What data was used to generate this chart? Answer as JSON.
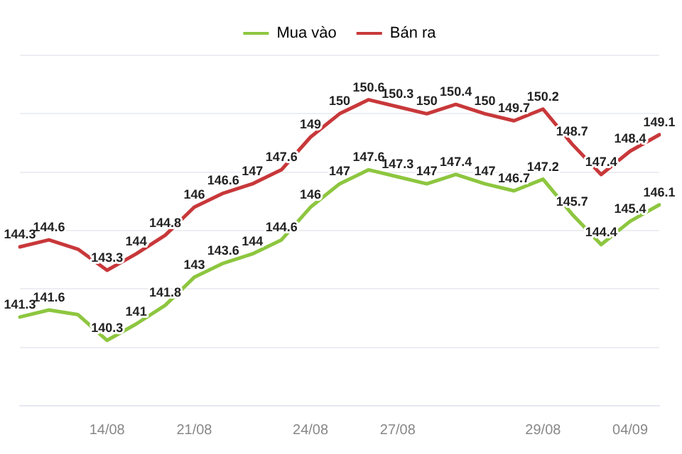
{
  "chart_data": {
    "type": "line",
    "categories": [
      null,
      null,
      null,
      "14/08",
      null,
      null,
      "21/08",
      null,
      null,
      null,
      "24/08",
      null,
      null,
      "27/08",
      null,
      null,
      null,
      null,
      "29/08",
      null,
      null,
      "04/09",
      null
    ],
    "series": [
      {
        "name": "Mua vào",
        "color": "#8dc63f",
        "values": [
          141.3,
          141.6,
          141.4,
          140.3,
          141,
          141.8,
          143,
          143.6,
          144,
          144.6,
          146,
          147,
          147.6,
          147.3,
          147,
          147.4,
          147,
          146.7,
          147.2,
          145.7,
          144.4,
          145.4,
          146.1
        ],
        "value_labels": [
          "141.3",
          "141.6",
          null,
          "140.3",
          "141",
          "141.8",
          "143",
          "143.6",
          "144",
          "144.6",
          "146",
          "147",
          "147.6",
          "147.3",
          "147",
          "147.4",
          "147",
          "146.7",
          "147.2",
          "145.7",
          "144.4",
          "145.4",
          "146.1"
        ]
      },
      {
        "name": "Bán ra",
        "color": "#c8383a",
        "values": [
          144.3,
          144.6,
          144.2,
          143.3,
          144,
          144.8,
          146,
          146.6,
          147,
          147.6,
          149,
          150,
          150.6,
          150.3,
          150,
          150.4,
          150,
          149.7,
          150.2,
          148.7,
          147.4,
          148.4,
          149.1
        ],
        "value_labels": [
          "144.3",
          "144.6",
          null,
          "143.3",
          "144",
          "144.8",
          "146",
          "146.6",
          "147",
          "147.6",
          "149",
          "150",
          "150.6",
          "150.3",
          "150",
          "150.4",
          "150",
          "149.7",
          "150.2",
          "148.7",
          "147.4",
          "148.4",
          "149.1"
        ]
      }
    ],
    "ylim": [
      137.5,
      152.5
    ],
    "yticks": [
      {
        "value": 137.5,
        "label": null
      },
      {
        "value": 140,
        "label": null
      },
      {
        "value": 142.5,
        "label": null
      },
      {
        "value": 145,
        "label": null
      },
      {
        "value": 147.5,
        "label": null
      },
      {
        "value": 150,
        "label": null
      },
      {
        "value": 152.5,
        "label": null
      }
    ],
    "tick_labels": "x",
    "grid": "y",
    "legend": "top",
    "marker": "none",
    "line_style": "solid"
  }
}
